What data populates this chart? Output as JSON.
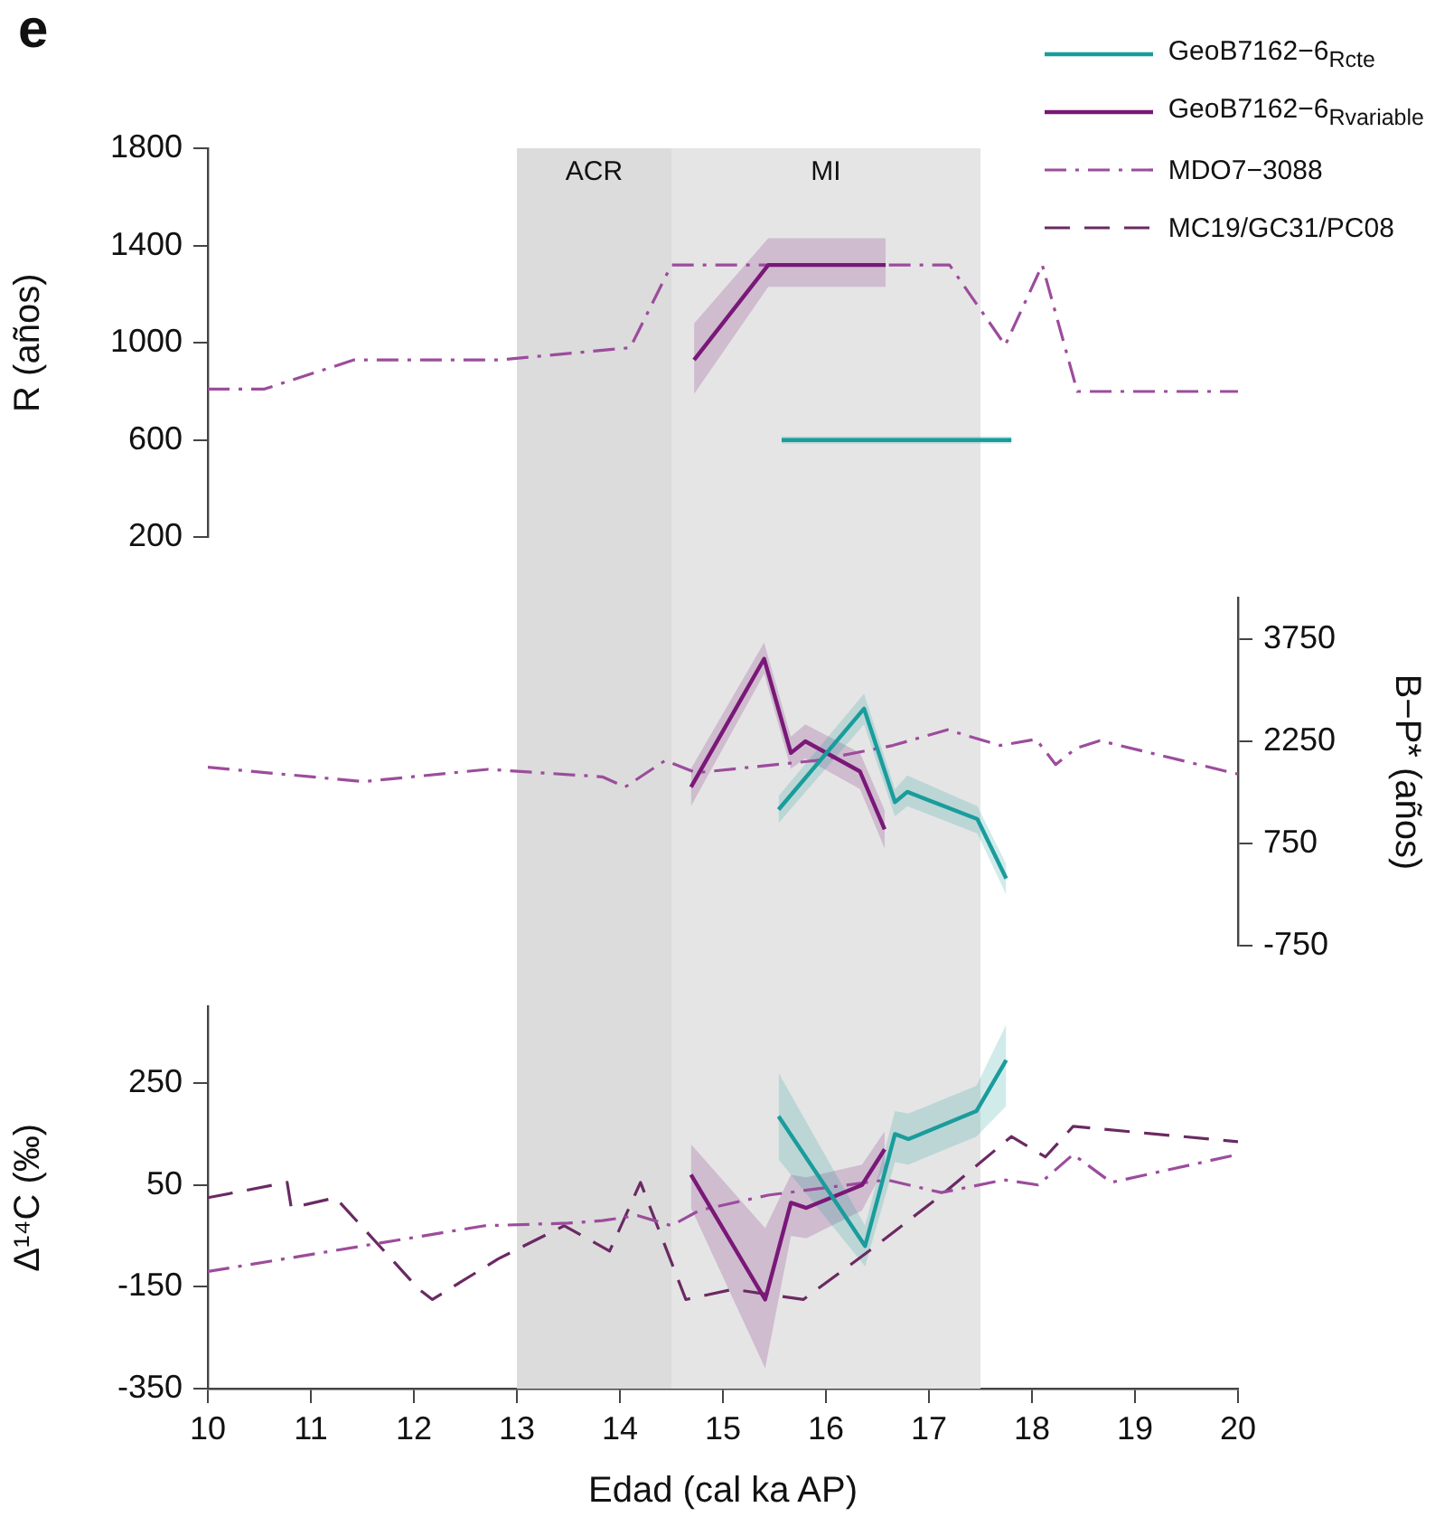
{
  "chart_data": [
    {
      "type": "line",
      "title": "e",
      "ylabel": "R (años)",
      "xlim": [
        10,
        20
      ],
      "xticks": [
        10,
        11,
        12,
        13,
        14,
        15,
        16,
        17,
        18,
        19,
        20
      ],
      "ylim": [
        200,
        1800
      ],
      "yticks": [
        200,
        600,
        1000,
        1400,
        1800
      ],
      "tick_labels": "y",
      "legend": "top right",
      "bands": [
        {
          "axis": "x",
          "from": 13,
          "to": 14.5,
          "label": "ACR",
          "color": "#dcdcdc"
        },
        {
          "axis": "x",
          "from": 14.5,
          "to": 17.5,
          "label": "MI",
          "color": "#e5e5e5"
        }
      ],
      "series": [
        {
          "name": "GeoB7162−6$_{R}$$_{cte}$",
          "color": "#1a9c9c",
          "line_style": "solid",
          "x": [
            15.57,
            17.8
          ],
          "values": [
            600,
            600
          ],
          "lower": [
            585,
            585
          ],
          "upper": [
            615,
            615
          ]
        },
        {
          "name": "GeoB7162−6$_{R}$$_{variable}$",
          "color": "#7a1878",
          "line_style": "solid",
          "x": [
            14.72,
            15.44,
            16.58
          ],
          "values": [
            930,
            1320,
            1320
          ],
          "lower": [
            790,
            1230,
            1230
          ],
          "upper": [
            1080,
            1430,
            1430
          ]
        },
        {
          "name": "MDO7−3088",
          "color": "#9c4c9c",
          "line_style": "dashdot",
          "x": [
            10,
            10.55,
            11.42,
            12.84,
            14.1,
            14.5,
            17.2,
            17.74,
            18.1,
            18.44,
            20
          ],
          "values": [
            810,
            810,
            930,
            930,
            980,
            1320,
            1320,
            990,
            1320,
            800,
            800
          ]
        }
      ]
    },
    {
      "type": "line",
      "ylabel": "B−P* (años)",
      "xlim": [
        10,
        20
      ],
      "xticks": [
        10,
        11,
        12,
        13,
        14,
        15,
        16,
        17,
        18,
        19,
        20
      ],
      "ylim": [
        -750,
        4350
      ],
      "yticks": [
        -750,
        750,
        2250,
        3750
      ],
      "tick_labels": "y",
      "bands": [
        {
          "axis": "x",
          "from": 13,
          "to": 14.5,
          "color": "#dcdcdc"
        },
        {
          "axis": "x",
          "from": 14.5,
          "to": 17.5,
          "color": "#e5e5e5"
        }
      ],
      "series": [
        {
          "color": "#1a9c9c",
          "line_style": "solid",
          "x": [
            15.54,
            16.37,
            16.67,
            16.79,
            17.47,
            17.75
          ],
          "values": [
            1250,
            2730,
            1360,
            1510,
            1110,
            240
          ],
          "lower": [
            1050,
            2500,
            1150,
            1300,
            900,
            0
          ],
          "upper": [
            1450,
            2950,
            1550,
            1750,
            1300,
            450
          ]
        },
        {
          "color": "#7a1878",
          "line_style": "solid",
          "x": [
            14.69,
            15.4,
            15.66,
            15.8,
            16.33,
            16.57
          ],
          "values": [
            1580,
            3460,
            2080,
            2250,
            1810,
            960
          ],
          "lower": [
            1300,
            3240,
            1850,
            2000,
            1550,
            680
          ],
          "upper": [
            1850,
            3700,
            2320,
            2500,
            2080,
            1240
          ]
        },
        {
          "color": "#9c4c9c",
          "line_style": "dashdot",
          "x": [
            10,
            11.51,
            12.72,
            13.83,
            14.05,
            14.44,
            14.74,
            15.91,
            16.65,
            17.18,
            17.69,
            18.04,
            18.23,
            18.43,
            18.66,
            20
          ],
          "values": [
            1870,
            1660,
            1840,
            1730,
            1580,
            1970,
            1790,
            1970,
            2190,
            2420,
            2190,
            2280,
            1910,
            2150,
            2260,
            1770
          ]
        }
      ]
    },
    {
      "type": "line",
      "xlabel": "Edad (cal ka AP)",
      "ylabel": "Δ¹⁴C (‰)",
      "xlim": [
        10,
        20
      ],
      "xticks": [
        10,
        11,
        12,
        13,
        14,
        15,
        16,
        17,
        18,
        19,
        20
      ],
      "ylim": [
        -350,
        400
      ],
      "yticks": [
        -350,
        -150,
        50,
        250
      ],
      "bands": [
        {
          "axis": "x",
          "from": 13,
          "to": 14.5,
          "color": "#dcdcdc"
        },
        {
          "axis": "x",
          "from": 14.5,
          "to": 17.5,
          "color": "#e5e5e5"
        }
      ],
      "series": [
        {
          "color": "#1a9c9c",
          "line_style": "solid",
          "x": [
            15.54,
            16.38,
            16.67,
            16.8,
            17.46,
            17.75
          ],
          "values": [
            185,
            -70,
            150,
            140,
            195,
            295
          ],
          "lower": [
            100,
            -110,
            95,
            90,
            145,
            205
          ],
          "upper": [
            270,
            -30,
            195,
            190,
            245,
            365
          ]
        },
        {
          "color": "#7a1878",
          "line_style": "solid",
          "x": [
            14.69,
            15.41,
            15.66,
            15.81,
            16.35,
            16.57
          ],
          "values": [
            70,
            -175,
            15,
            5,
            50,
            120
          ],
          "lower": [
            5,
            -310,
            -50,
            -55,
            0,
            85
          ],
          "upper": [
            130,
            -35,
            70,
            65,
            90,
            155
          ]
        },
        {
          "color": "#9c4c9c",
          "line_style": "dashdot",
          "x": [
            10,
            12.69,
            13.5,
            13.83,
            14.17,
            14.5,
            14.77,
            15.44,
            16.59,
            17.12,
            17.73,
            18.06,
            18.4,
            18.77,
            20
          ],
          "values": [
            -120,
            -30,
            -25,
            -20,
            -10,
            -30,
            0,
            30,
            60,
            35,
            60,
            50,
            110,
            55,
            110
          ]
        },
        {
          "name": "MC19/GC31/PC08",
          "color": "#6a2a62",
          "line_style": "dashed",
          "x": [
            10,
            10.77,
            10.81,
            11.24,
            12.05,
            12.18,
            12.82,
            13.46,
            13.9,
            14.2,
            14.64,
            15.1,
            15.78,
            16.45,
            17.12,
            17.8,
            18.13,
            18.4,
            20
          ],
          "values": [
            25,
            55,
            5,
            25,
            -155,
            -175,
            -95,
            -30,
            -80,
            55,
            -175,
            -155,
            -175,
            -75,
            30,
            145,
            105,
            165,
            135
          ]
        }
      ]
    }
  ]
}
